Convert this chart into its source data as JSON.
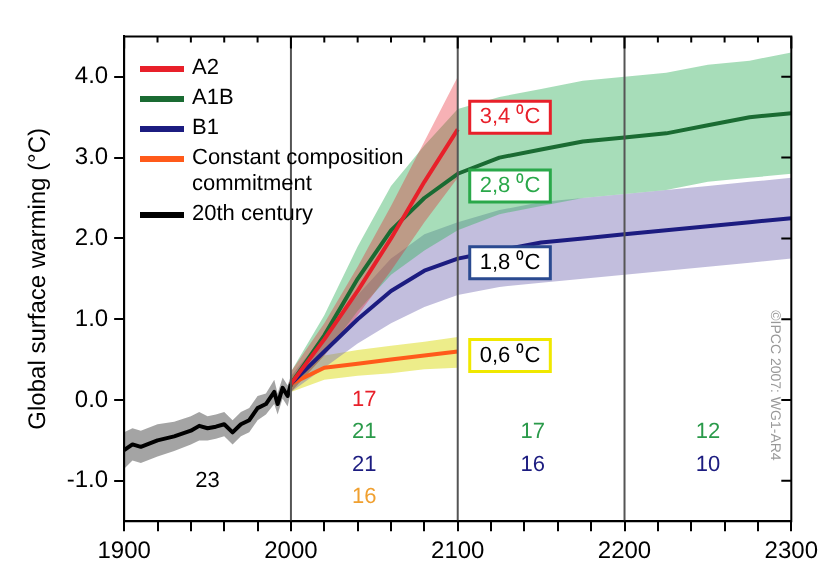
{
  "chart_data": {
    "type": "line",
    "ylabel": "Global surface warming (°C)",
    "xlim": [
      1900,
      2300
    ],
    "xticks": [
      1900,
      {
        "value": 1920,
        "label": null
      },
      {
        "value": 1940,
        "label": null
      },
      {
        "value": 1960,
        "label": null
      },
      {
        "value": 1980,
        "label": null
      },
      2000,
      {
        "value": 2020,
        "label": null
      },
      {
        "value": 2040,
        "label": null
      },
      {
        "value": 2060,
        "label": null
      },
      {
        "value": 2080,
        "label": null
      },
      2100,
      {
        "value": 2120,
        "label": null
      },
      {
        "value": 2140,
        "label": null
      },
      {
        "value": 2160,
        "label": null
      },
      {
        "value": 2180,
        "label": null
      },
      2200,
      {
        "value": 2220,
        "label": null
      },
      {
        "value": 2240,
        "label": null
      },
      {
        "value": 2260,
        "label": null
      },
      {
        "value": 2280,
        "label": null
      },
      2300
    ],
    "ylim": [
      -1.5,
      4.5
    ],
    "yticks": [
      {
        "value": -1,
        "label": "-1.0"
      },
      {
        "value": 0,
        "label": "0.0"
      },
      {
        "value": 1,
        "label": "1.0"
      },
      {
        "value": 2,
        "label": "2.0"
      },
      {
        "value": 3,
        "label": "3.0"
      },
      {
        "value": 4,
        "label": "4.0"
      }
    ],
    "grid": false,
    "legend": "top left",
    "marker": "none",
    "line_style": "solid",
    "series": [
      {
        "name": "A2",
        "color": "#e8202a",
        "x": [
          2000,
          2020,
          2040,
          2060,
          2080,
          2100
        ],
        "values": [
          0.2,
          0.75,
          1.35,
          2.0,
          2.7,
          3.35
        ],
        "lower": [
          0.1,
          0.55,
          1.05,
          1.6,
          2.2,
          2.75
        ],
        "upper": [
          0.35,
          0.95,
          1.65,
          2.4,
          3.2,
          4.0
        ]
      },
      {
        "name": "A1B",
        "color": "#1a6b32",
        "x": [
          2000,
          2020,
          2040,
          2060,
          2080,
          2100,
          2125,
          2150,
          2175,
          2200,
          2225,
          2250,
          2275,
          2300
        ],
        "values": [
          0.2,
          0.8,
          1.5,
          2.1,
          2.5,
          2.8,
          3.0,
          3.1,
          3.2,
          3.25,
          3.3,
          3.4,
          3.5,
          3.55
        ],
        "lower": [
          0.1,
          0.55,
          1.1,
          1.55,
          1.85,
          2.1,
          2.3,
          2.4,
          2.5,
          2.55,
          2.6,
          2.7,
          2.75,
          2.8
        ],
        "upper": [
          0.35,
          1.05,
          1.9,
          2.65,
          3.15,
          3.6,
          3.75,
          3.85,
          3.95,
          4.0,
          4.05,
          4.15,
          4.2,
          4.3
        ]
      },
      {
        "name": "B1",
        "color": "#1c1c80",
        "x": [
          2000,
          2020,
          2040,
          2060,
          2080,
          2100,
          2125,
          2150,
          2175,
          2200,
          2225,
          2250,
          2275,
          2300
        ],
        "values": [
          0.2,
          0.6,
          1.0,
          1.35,
          1.6,
          1.75,
          1.85,
          1.95,
          2.0,
          2.05,
          2.1,
          2.15,
          2.2,
          2.25
        ],
        "lower": [
          0.1,
          0.4,
          0.7,
          0.95,
          1.15,
          1.3,
          1.4,
          1.45,
          1.5,
          1.55,
          1.6,
          1.65,
          1.7,
          1.75
        ],
        "upper": [
          0.3,
          0.8,
          1.3,
          1.75,
          2.05,
          2.2,
          2.35,
          2.45,
          2.5,
          2.55,
          2.6,
          2.65,
          2.7,
          2.75
        ]
      },
      {
        "name": "Constant composition commitment",
        "color": "#ff5a1a",
        "x": [
          2000,
          2020,
          2040,
          2060,
          2080,
          2100
        ],
        "values": [
          0.2,
          0.4,
          0.45,
          0.5,
          0.55,
          0.6
        ],
        "lower": [
          0.1,
          0.25,
          0.3,
          0.33,
          0.38,
          0.4
        ],
        "upper": [
          0.3,
          0.55,
          0.62,
          0.67,
          0.72,
          0.78
        ]
      },
      {
        "name": "20th century",
        "color": "#000000",
        "x": [
          1900,
          1905,
          1910,
          1920,
          1930,
          1940,
          1945,
          1950,
          1955,
          1960,
          1965,
          1970,
          1975,
          1980,
          1985,
          1990,
          1992,
          1995,
          1998,
          2000
        ],
        "values": [
          -0.62,
          -0.55,
          -0.58,
          -0.5,
          -0.45,
          -0.38,
          -0.32,
          -0.35,
          -0.33,
          -0.3,
          -0.4,
          -0.3,
          -0.25,
          -0.1,
          -0.05,
          0.1,
          -0.05,
          0.15,
          0.05,
          0.2
        ],
        "lower": [
          -0.85,
          -0.75,
          -0.78,
          -0.7,
          -0.63,
          -0.55,
          -0.5,
          -0.5,
          -0.48,
          -0.45,
          -0.55,
          -0.45,
          -0.4,
          -0.25,
          -0.18,
          -0.05,
          -0.18,
          0.02,
          -0.08,
          0.1
        ],
        "upper": [
          -0.4,
          -0.35,
          -0.38,
          -0.3,
          -0.27,
          -0.2,
          -0.15,
          -0.2,
          -0.18,
          -0.15,
          -0.25,
          -0.15,
          -0.1,
          0.05,
          0.08,
          0.25,
          0.08,
          0.28,
          0.18,
          0.3
        ]
      }
    ],
    "ref_lines": [
      {
        "axis": "x",
        "value": 2000,
        "color": "#555555"
      },
      {
        "axis": "x",
        "value": 2100,
        "color": "#555555"
      },
      {
        "axis": "x",
        "value": 2200,
        "color": "#555555"
      }
    ],
    "annotations": [
      "3,4 ⁰C",
      "2,8 ⁰C",
      "1,8 ⁰C",
      "0,6 ⁰C",
      "23",
      "17",
      "21",
      "21",
      "16",
      "17",
      "16",
      "12",
      "10",
      "©IPCC 2007: WG1-AR4"
    ]
  }
}
